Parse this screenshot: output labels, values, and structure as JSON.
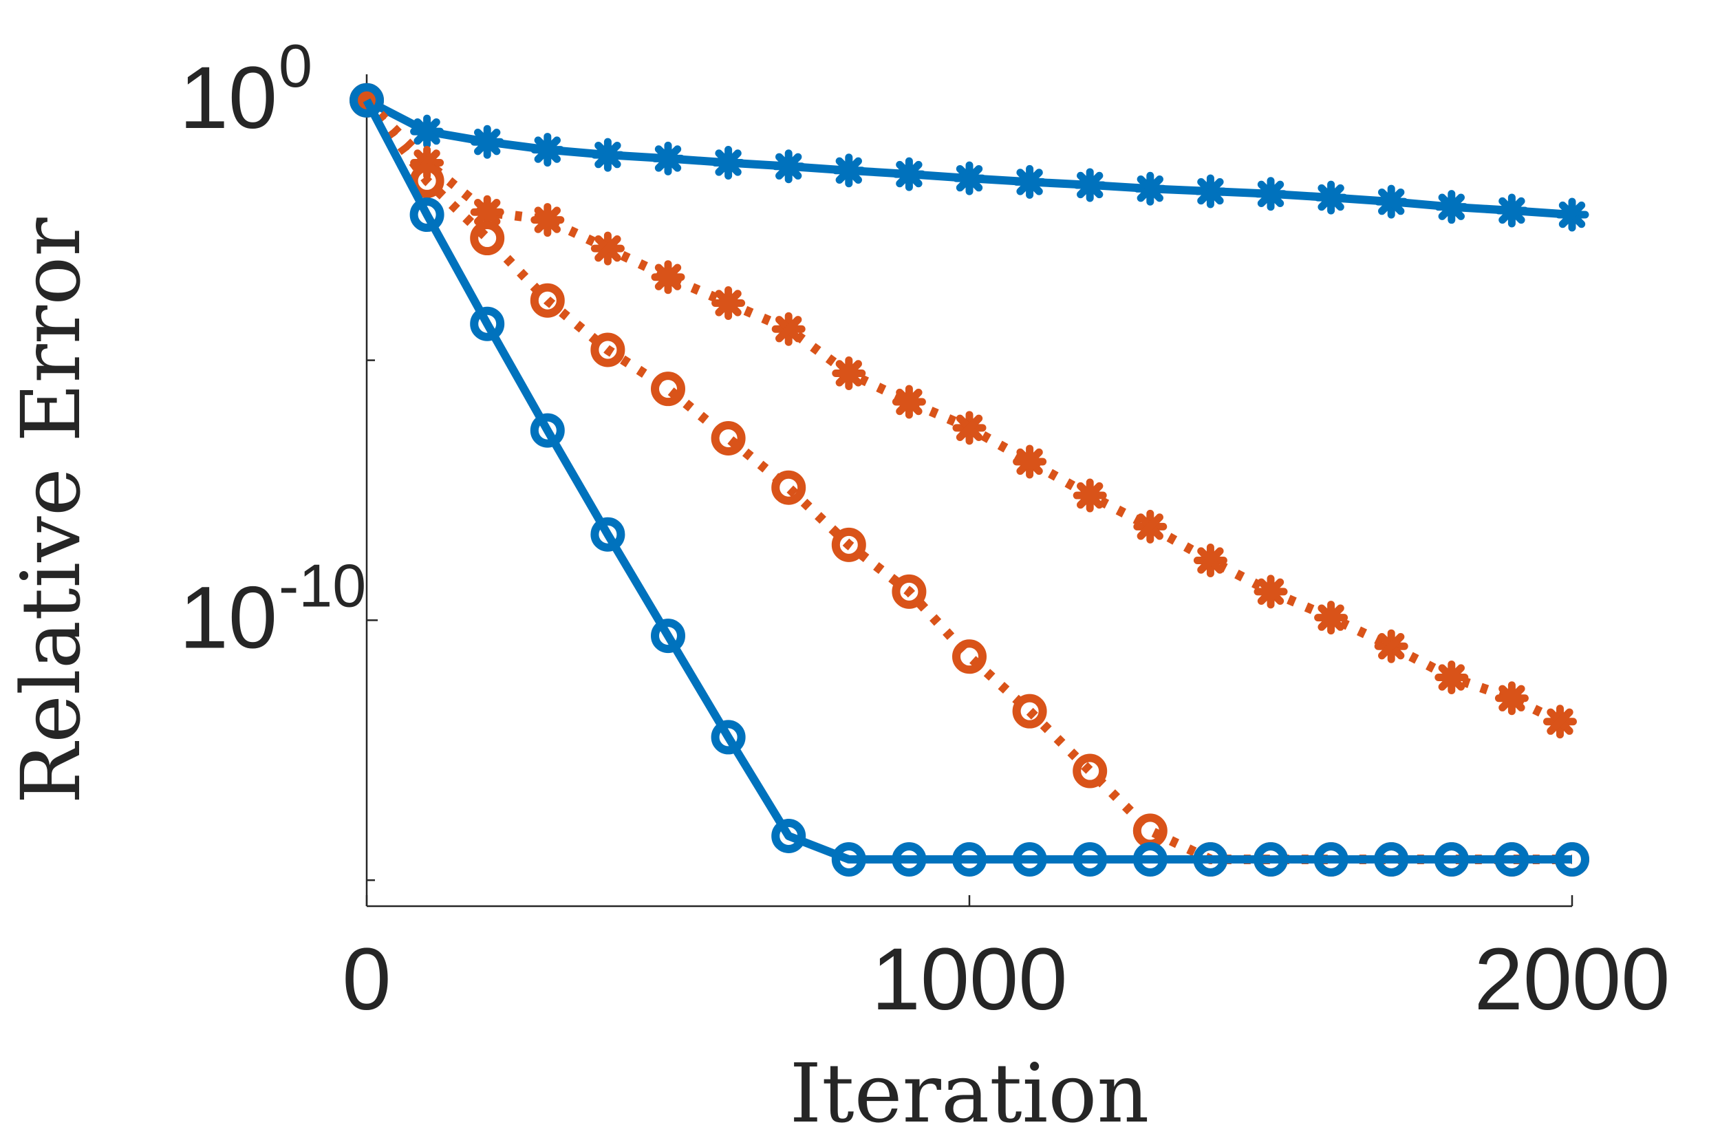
{
  "chart_data": {
    "type": "line",
    "xlabel": "Iteration",
    "ylabel": "Relative Error",
    "xlim": [
      0,
      2000
    ],
    "ylim_log10": [
      -15.5,
      0.5
    ],
    "yscale": "log",
    "x_ticks": [
      0,
      1000,
      2000
    ],
    "x_tick_labels": [
      "0",
      "1000",
      "2000"
    ],
    "y_ticks": [
      {
        "value_log10": 0,
        "base": "10",
        "exp": "0"
      },
      {
        "value_log10": -10,
        "base": "10",
        "exp": "-10"
      }
    ],
    "y_minor_ticks_log10": [
      -5,
      -15
    ],
    "grid": false,
    "legend": "none",
    "series": [
      {
        "color": "#0072BD",
        "line_style": "solid",
        "marker": "asterisk",
        "x": [
          0,
          100,
          200,
          300,
          400,
          500,
          600,
          700,
          800,
          900,
          1000,
          1100,
          1200,
          1300,
          1400,
          1500,
          1600,
          1700,
          1800,
          1900,
          2000
        ],
        "log10_y": [
          0,
          -0.6,
          -0.8,
          -0.95,
          -1.05,
          -1.12,
          -1.2,
          -1.27,
          -1.35,
          -1.42,
          -1.5,
          -1.57,
          -1.63,
          -1.7,
          -1.75,
          -1.8,
          -1.87,
          -1.95,
          -2.05,
          -2.12,
          -2.2
        ]
      },
      {
        "color": "#D95319",
        "line_style": "dotted",
        "marker": "asterisk",
        "x": [
          0,
          100,
          200,
          300,
          400,
          500,
          600,
          700,
          800,
          900,
          1000,
          1100,
          1200,
          1300,
          1400,
          1500,
          1600,
          1700,
          1800,
          1900,
          1980
        ],
        "log10_y": [
          0,
          -1.2,
          -2.15,
          -2.3,
          -2.85,
          -3.4,
          -3.9,
          -4.4,
          -5.25,
          -5.8,
          -6.3,
          -6.95,
          -7.6,
          -8.2,
          -8.85,
          -9.45,
          -9.95,
          -10.5,
          -11.1,
          -11.5,
          -11.95
        ]
      },
      {
        "color": "#D95319",
        "line_style": "dotted",
        "marker": "circle",
        "x": [
          0,
          100,
          200,
          300,
          400,
          500,
          600,
          700,
          800,
          900,
          1000,
          1100,
          1200,
          1300,
          1400,
          1500,
          1600,
          1700,
          1800,
          1900,
          2000
        ],
        "log10_y": [
          0,
          -1.55,
          -2.65,
          -3.85,
          -4.8,
          -5.55,
          -6.5,
          -7.45,
          -8.55,
          -9.45,
          -10.7,
          -11.75,
          -12.9,
          -14.05,
          -14.6,
          -14.6,
          -14.6,
          -14.6,
          -14.6,
          -14.6,
          -14.6
        ]
      },
      {
        "color": "#0072BD",
        "line_style": "solid",
        "marker": "circle",
        "x": [
          0,
          100,
          200,
          300,
          400,
          500,
          600,
          700,
          800,
          900,
          1000,
          1100,
          1200,
          1300,
          1400,
          1500,
          1600,
          1700,
          1800,
          1900,
          2000
        ],
        "log10_y": [
          0,
          -2.2,
          -4.3,
          -6.35,
          -8.35,
          -10.3,
          -12.25,
          -14.15,
          -14.6,
          -14.6,
          -14.6,
          -14.6,
          -14.6,
          -14.6,
          -14.6,
          -14.6,
          -14.6,
          -14.6,
          -14.6,
          -14.6,
          -14.6
        ]
      }
    ]
  }
}
